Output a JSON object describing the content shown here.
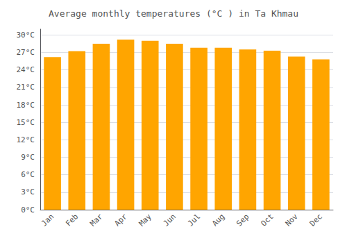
{
  "chart_data": {
    "type": "bar",
    "title": "Average monthly temperatures (°C ) in Ta Khmau",
    "categories": [
      "Jan",
      "Feb",
      "Mar",
      "Apr",
      "May",
      "Jun",
      "Jul",
      "Aug",
      "Sep",
      "Oct",
      "Nov",
      "Dec"
    ],
    "values": [
      26.2,
      27.2,
      28.5,
      29.2,
      29.0,
      28.5,
      27.8,
      27.8,
      27.5,
      27.3,
      26.3,
      25.8
    ],
    "color": "#FFA500",
    "ylim": [
      0,
      31
    ],
    "yticks": [
      {
        "value": 0,
        "label": "0°C"
      },
      {
        "value": 3,
        "label": "3°C"
      },
      {
        "value": 6,
        "label": "6°C"
      },
      {
        "value": 9,
        "label": "9°C"
      },
      {
        "value": 12,
        "label": "12°C"
      },
      {
        "value": 15,
        "label": "15°C"
      },
      {
        "value": 18,
        "label": "18°C"
      },
      {
        "value": 21,
        "label": "21°C"
      },
      {
        "value": 24,
        "label": "24°C"
      },
      {
        "value": 27,
        "label": "27°C"
      },
      {
        "value": 30,
        "label": "30°C"
      }
    ],
    "grid": true
  }
}
